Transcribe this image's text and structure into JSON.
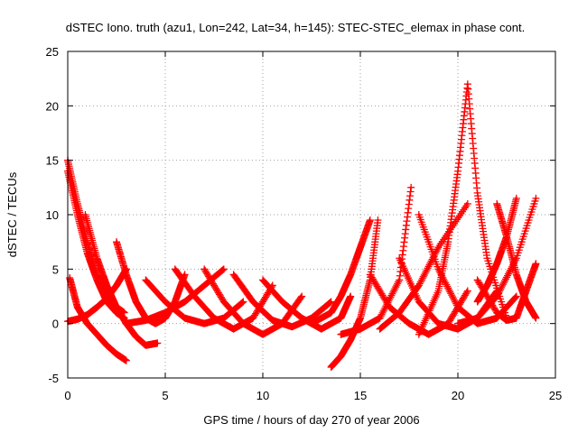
{
  "chart_data": {
    "type": "scatter",
    "title": "dSTEC Iono. truth (azu1, Lon=242, Lat=34, h=145): STEC-STEC_elemax in phase cont.",
    "xlabel": "GPS time / hours of day 270 of year 2006",
    "ylabel": "dSTEC  / TECUs",
    "xlim": [
      0,
      25
    ],
    "ylim": [
      -5,
      25
    ],
    "x_ticks": [
      0,
      5,
      10,
      15,
      20,
      25
    ],
    "y_ticks": [
      -5,
      0,
      5,
      10,
      15,
      20,
      25
    ],
    "x_tick_labels": [
      "0",
      "5",
      "10",
      "15",
      "20",
      "25"
    ],
    "y_tick_labels": [
      "-5",
      "0",
      "5",
      "10",
      "15",
      "20",
      "25"
    ],
    "grid": true,
    "legend": "none",
    "marker": "+",
    "color": "#ff0000",
    "series": [
      {
        "x": [
          0.0,
          0.5,
          1.0,
          1.5,
          2.0,
          2.5,
          2.9
        ],
        "y": [
          15.0,
          11.0,
          7.5,
          4.5,
          2.5,
          1.5,
          1.0
        ]
      },
      {
        "x": [
          0.0,
          0.5,
          1.0,
          1.5,
          2.0,
          2.5,
          2.9
        ],
        "y": [
          14.0,
          10.0,
          6.5,
          4.0,
          2.0,
          1.0,
          0.5
        ]
      },
      {
        "x": [
          0.0,
          0.5,
          1.0,
          1.5,
          2.0,
          2.5,
          3.0
        ],
        "y": [
          0.2,
          0.4,
          0.8,
          1.5,
          2.3,
          3.5,
          5.0
        ]
      },
      {
        "x": [
          0.1,
          0.5,
          1.0,
          1.5,
          2.0,
          2.5,
          3.0
        ],
        "y": [
          4.2,
          1.5,
          0.0,
          -1.0,
          -2.0,
          -2.8,
          -3.4
        ]
      },
      {
        "x": [
          0.9,
          1.5,
          2.0,
          2.5,
          3.0,
          3.5,
          4.0,
          4.6
        ],
        "y": [
          10.0,
          6.0,
          3.5,
          1.5,
          0.0,
          -1.2,
          -2.0,
          -1.8
        ]
      },
      {
        "x": [
          2.5,
          3.0,
          3.5,
          4.0,
          4.5,
          5.0,
          5.5,
          6.0
        ],
        "y": [
          7.5,
          4.5,
          2.0,
          0.5,
          0.0,
          0.5,
          2.0,
          4.5
        ]
      },
      {
        "x": [
          3.0,
          4.0,
          5.0,
          6.0,
          7.0,
          8.0
        ],
        "y": [
          0.0,
          0.3,
          1.0,
          2.0,
          3.5,
          5.0
        ]
      },
      {
        "x": [
          4.0,
          5.0,
          6.0,
          7.0,
          8.0,
          9.0
        ],
        "y": [
          4.0,
          2.0,
          0.5,
          0.0,
          0.5,
          2.0
        ]
      },
      {
        "x": [
          5.5,
          6.5,
          7.5,
          8.5,
          9.5,
          10.5
        ],
        "y": [
          5.0,
          2.5,
          0.5,
          -0.5,
          0.5,
          3.5
        ]
      },
      {
        "x": [
          7.0,
          8.0,
          9.0,
          10.0,
          11.0,
          12.0
        ],
        "y": [
          5.0,
          2.0,
          0.0,
          -1.0,
          0.0,
          2.5
        ]
      },
      {
        "x": [
          8.5,
          9.5,
          10.5,
          11.5,
          12.5,
          13.5
        ],
        "y": [
          4.5,
          2.0,
          0.3,
          -0.3,
          0.5,
          2.0
        ]
      },
      {
        "x": [
          10.0,
          11.0,
          12.0,
          13.0,
          14.0,
          14.5
        ],
        "y": [
          4.0,
          2.0,
          0.5,
          -0.5,
          0.5,
          2.5
        ]
      },
      {
        "x": [
          13.5,
          14.0,
          14.5,
          15.0,
          15.5,
          15.9
        ],
        "y": [
          -4.0,
          -3.0,
          -1.5,
          0.5,
          4.0,
          9.5
        ]
      },
      {
        "x": [
          12.5,
          13.5,
          14.0,
          14.5,
          15.0,
          15.5
        ],
        "y": [
          0.0,
          1.0,
          2.5,
          4.5,
          7.0,
          9.5
        ]
      },
      {
        "x": [
          14.0,
          15.0,
          16.0,
          17.0,
          17.6
        ],
        "y": [
          -1.0,
          -0.5,
          0.5,
          4.0,
          12.5
        ]
      },
      {
        "x": [
          15.5,
          16.5,
          17.5,
          18.5,
          19.5,
          20.5
        ],
        "y": [
          4.5,
          1.5,
          0.0,
          -1.0,
          0.0,
          3.0
        ]
      },
      {
        "x": [
          16.0,
          17.0,
          18.0,
          19.0,
          20.5
        ],
        "y": [
          -0.5,
          1.0,
          3.5,
          7.0,
          11.0
        ]
      },
      {
        "x": [
          18.0,
          19.0,
          19.5,
          20.0,
          20.5,
          21.0,
          21.5,
          22.5
        ],
        "y": [
          -1.0,
          3.0,
          7.5,
          14.0,
          22.0,
          12.0,
          6.0,
          0.5
        ]
      },
      {
        "x": [
          17.0,
          18.0,
          19.0,
          20.0,
          21.0,
          22.0
        ],
        "y": [
          6.0,
          2.0,
          0.0,
          -0.5,
          0.5,
          3.0
        ]
      },
      {
        "x": [
          18.0,
          19.0,
          20.0,
          21.0,
          22.0,
          23.0
        ],
        "y": [
          10.0,
          5.0,
          1.5,
          0.0,
          0.5,
          2.5
        ]
      },
      {
        "x": [
          20.0,
          21.0,
          22.0,
          23.0,
          24.0
        ],
        "y": [
          0.0,
          0.5,
          2.5,
          6.0,
          11.5
        ]
      },
      {
        "x": [
          21.0,
          22.0,
          22.5,
          23.0,
          23.5,
          24.0
        ],
        "y": [
          4.0,
          1.0,
          0.3,
          0.5,
          3.0,
          5.5
        ]
      },
      {
        "x": [
          22.0,
          22.5,
          23.0,
          23.5,
          24.0
        ],
        "y": [
          11.0,
          8.0,
          4.5,
          2.0,
          0.5
        ]
      },
      {
        "x": [
          21.0,
          21.5,
          22.0,
          22.5,
          23.0
        ],
        "y": [
          2.0,
          3.5,
          5.5,
          8.0,
          11.5
        ]
      }
    ]
  }
}
